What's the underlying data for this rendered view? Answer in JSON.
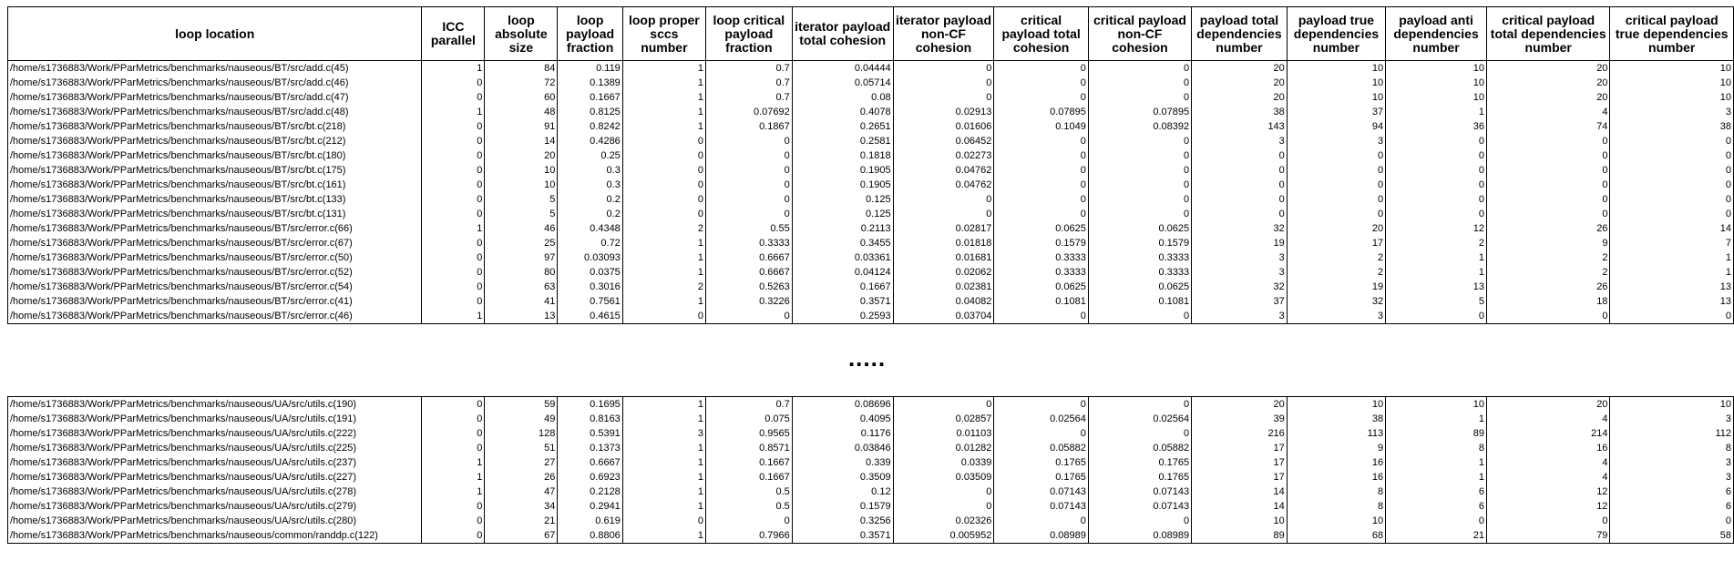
{
  "headers": [
    "loop location",
    "ICC parallel",
    "loop absolute size",
    "loop payload fraction",
    "loop proper sccs number",
    "loop critical payload fraction",
    "iterator payload total cohesion",
    "iterator payload non-CF cohesion",
    "critical payload total cohesion",
    "critical payload non-CF cohesion",
    "payload total dependencies number",
    "payload true dependencies number",
    "payload anti dependencies number",
    "critical payload total dependencies number",
    "critical payload true dependencies number"
  ],
  "rows_top": [
    [
      "/home/s1736883/Work/PParMetrics/benchmarks/nauseous/BT/src/add.c(45)",
      "1",
      "84",
      "0.119",
      "1",
      "0.7",
      "0.04444",
      "0",
      "0",
      "0",
      "20",
      "10",
      "10",
      "20",
      "10"
    ],
    [
      "/home/s1736883/Work/PParMetrics/benchmarks/nauseous/BT/src/add.c(46)",
      "0",
      "72",
      "0.1389",
      "1",
      "0.7",
      "0.05714",
      "0",
      "0",
      "0",
      "20",
      "10",
      "10",
      "20",
      "10"
    ],
    [
      "/home/s1736883/Work/PParMetrics/benchmarks/nauseous/BT/src/add.c(47)",
      "0",
      "60",
      "0.1667",
      "1",
      "0.7",
      "0.08",
      "0",
      "0",
      "0",
      "20",
      "10",
      "10",
      "20",
      "10"
    ],
    [
      "/home/s1736883/Work/PParMetrics/benchmarks/nauseous/BT/src/add.c(48)",
      "1",
      "48",
      "0.8125",
      "1",
      "0.07692",
      "0.4078",
      "0.02913",
      "0.07895",
      "0.07895",
      "38",
      "37",
      "1",
      "4",
      "3"
    ],
    [
      "/home/s1736883/Work/PParMetrics/benchmarks/nauseous/BT/src/bt.c(218)",
      "0",
      "91",
      "0.8242",
      "1",
      "0.1867",
      "0.2651",
      "0.01606",
      "0.1049",
      "0.08392",
      "143",
      "94",
      "36",
      "74",
      "38"
    ],
    [
      "/home/s1736883/Work/PParMetrics/benchmarks/nauseous/BT/src/bt.c(212)",
      "0",
      "14",
      "0.4286",
      "0",
      "0",
      "0.2581",
      "0.06452",
      "0",
      "0",
      "3",
      "3",
      "0",
      "0",
      "0"
    ],
    [
      "/home/s1736883/Work/PParMetrics/benchmarks/nauseous/BT/src/bt.c(180)",
      "0",
      "20",
      "0.25",
      "0",
      "0",
      "0.1818",
      "0.02273",
      "0",
      "0",
      "0",
      "0",
      "0",
      "0",
      "0"
    ],
    [
      "/home/s1736883/Work/PParMetrics/benchmarks/nauseous/BT/src/bt.c(175)",
      "0",
      "10",
      "0.3",
      "0",
      "0",
      "0.1905",
      "0.04762",
      "0",
      "0",
      "0",
      "0",
      "0",
      "0",
      "0"
    ],
    [
      "/home/s1736883/Work/PParMetrics/benchmarks/nauseous/BT/src/bt.c(161)",
      "0",
      "10",
      "0.3",
      "0",
      "0",
      "0.1905",
      "0.04762",
      "0",
      "0",
      "0",
      "0",
      "0",
      "0",
      "0"
    ],
    [
      "/home/s1736883/Work/PParMetrics/benchmarks/nauseous/BT/src/bt.c(133)",
      "0",
      "5",
      "0.2",
      "0",
      "0",
      "0.125",
      "0",
      "0",
      "0",
      "0",
      "0",
      "0",
      "0",
      "0"
    ],
    [
      "/home/s1736883/Work/PParMetrics/benchmarks/nauseous/BT/src/bt.c(131)",
      "0",
      "5",
      "0.2",
      "0",
      "0",
      "0.125",
      "0",
      "0",
      "0",
      "0",
      "0",
      "0",
      "0",
      "0"
    ],
    [
      "/home/s1736883/Work/PParMetrics/benchmarks/nauseous/BT/src/error.c(66)",
      "1",
      "46",
      "0.4348",
      "2",
      "0.55",
      "0.2113",
      "0.02817",
      "0.0625",
      "0.0625",
      "32",
      "20",
      "12",
      "26",
      "14"
    ],
    [
      "/home/s1736883/Work/PParMetrics/benchmarks/nauseous/BT/src/error.c(67)",
      "0",
      "25",
      "0.72",
      "1",
      "0.3333",
      "0.3455",
      "0.01818",
      "0.1579",
      "0.1579",
      "19",
      "17",
      "2",
      "9",
      "7"
    ],
    [
      "/home/s1736883/Work/PParMetrics/benchmarks/nauseous/BT/src/error.c(50)",
      "0",
      "97",
      "0.03093",
      "1",
      "0.6667",
      "0.03361",
      "0.01681",
      "0.3333",
      "0.3333",
      "3",
      "2",
      "1",
      "2",
      "1"
    ],
    [
      "/home/s1736883/Work/PParMetrics/benchmarks/nauseous/BT/src/error.c(52)",
      "0",
      "80",
      "0.0375",
      "1",
      "0.6667",
      "0.04124",
      "0.02062",
      "0.3333",
      "0.3333",
      "3",
      "2",
      "1",
      "2",
      "1"
    ],
    [
      "/home/s1736883/Work/PParMetrics/benchmarks/nauseous/BT/src/error.c(54)",
      "0",
      "63",
      "0.3016",
      "2",
      "0.5263",
      "0.1667",
      "0.02381",
      "0.0625",
      "0.0625",
      "32",
      "19",
      "13",
      "26",
      "13"
    ],
    [
      "/home/s1736883/Work/PParMetrics/benchmarks/nauseous/BT/src/error.c(41)",
      "0",
      "41",
      "0.7561",
      "1",
      "0.3226",
      "0.3571",
      "0.04082",
      "0.1081",
      "0.1081",
      "37",
      "32",
      "5",
      "18",
      "13"
    ],
    [
      "/home/s1736883/Work/PParMetrics/benchmarks/nauseous/BT/src/error.c(46)",
      "1",
      "13",
      "0.4615",
      "0",
      "0",
      "0.2593",
      "0.03704",
      "0",
      "0",
      "3",
      "3",
      "0",
      "0",
      "0"
    ]
  ],
  "gap_marker": ".....",
  "rows_bottom": [
    [
      "/home/s1736883/Work/PParMetrics/benchmarks/nauseous/UA/src/utils.c(190)",
      "0",
      "59",
      "0.1695",
      "1",
      "0.7",
      "0.08696",
      "0",
      "0",
      "0",
      "20",
      "10",
      "10",
      "20",
      "10"
    ],
    [
      "/home/s1736883/Work/PParMetrics/benchmarks/nauseous/UA/src/utils.c(191)",
      "0",
      "49",
      "0.8163",
      "1",
      "0.075",
      "0.4095",
      "0.02857",
      "0.02564",
      "0.02564",
      "39",
      "38",
      "1",
      "4",
      "3"
    ],
    [
      "/home/s1736883/Work/PParMetrics/benchmarks/nauseous/UA/src/utils.c(222)",
      "0",
      "128",
      "0.5391",
      "3",
      "0.9565",
      "0.1176",
      "0.01103",
      "0",
      "0",
      "216",
      "113",
      "89",
      "214",
      "112"
    ],
    [
      "/home/s1736883/Work/PParMetrics/benchmarks/nauseous/UA/src/utils.c(225)",
      "0",
      "51",
      "0.1373",
      "1",
      "0.8571",
      "0.03846",
      "0.01282",
      "0.05882",
      "0.05882",
      "17",
      "9",
      "8",
      "16",
      "8"
    ],
    [
      "/home/s1736883/Work/PParMetrics/benchmarks/nauseous/UA/src/utils.c(237)",
      "1",
      "27",
      "0.6667",
      "1",
      "0.1667",
      "0.339",
      "0.0339",
      "0.1765",
      "0.1765",
      "17",
      "16",
      "1",
      "4",
      "3"
    ],
    [
      "/home/s1736883/Work/PParMetrics/benchmarks/nauseous/UA/src/utils.c(227)",
      "1",
      "26",
      "0.6923",
      "1",
      "0.1667",
      "0.3509",
      "0.03509",
      "0.1765",
      "0.1765",
      "17",
      "16",
      "1",
      "4",
      "3"
    ],
    [
      "/home/s1736883/Work/PParMetrics/benchmarks/nauseous/UA/src/utils.c(278)",
      "1",
      "47",
      "0.2128",
      "1",
      "0.5",
      "0.12",
      "0",
      "0.07143",
      "0.07143",
      "14",
      "8",
      "6",
      "12",
      "6"
    ],
    [
      "/home/s1736883/Work/PParMetrics/benchmarks/nauseous/UA/src/utils.c(279)",
      "0",
      "34",
      "0.2941",
      "1",
      "0.5",
      "0.1579",
      "0",
      "0.07143",
      "0.07143",
      "14",
      "8",
      "6",
      "12",
      "6"
    ],
    [
      "/home/s1736883/Work/PParMetrics/benchmarks/nauseous/UA/src/utils.c(280)",
      "0",
      "21",
      "0.619",
      "0",
      "0",
      "0.3256",
      "0.02326",
      "0",
      "0",
      "10",
      "10",
      "0",
      "0",
      "0"
    ],
    [
      "/home/s1736883/Work/PParMetrics/benchmarks/nauseous/common/randdp.c(122)",
      "0",
      "67",
      "0.8806",
      "1",
      "0.7966",
      "0.3571",
      "0.005952",
      "0.08989",
      "0.08989",
      "89",
      "68",
      "21",
      "79",
      "58"
    ]
  ]
}
